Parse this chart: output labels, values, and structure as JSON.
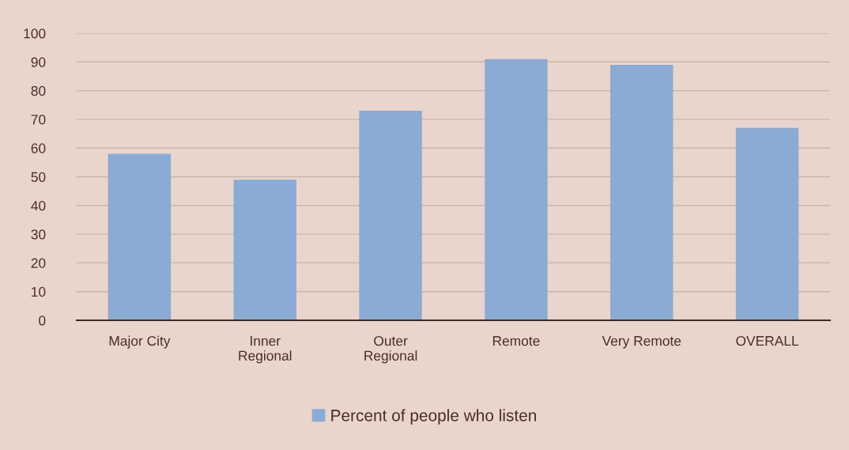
{
  "chart_data": {
    "type": "bar",
    "categories": [
      "Major City",
      "Inner\nRegional",
      "Outer\nRegional",
      "Remote",
      "Very Remote",
      "OVERALL"
    ],
    "series": [
      {
        "name": "Percent of people who listen",
        "color": "#8aabd3",
        "values": [
          58,
          49,
          73,
          91,
          89,
          67
        ]
      }
    ],
    "ylim": [
      0,
      100
    ],
    "yticks": [
      0,
      10,
      20,
      30,
      40,
      50,
      60,
      70,
      80,
      90,
      100
    ],
    "grid": "y",
    "legend": "bottom"
  }
}
